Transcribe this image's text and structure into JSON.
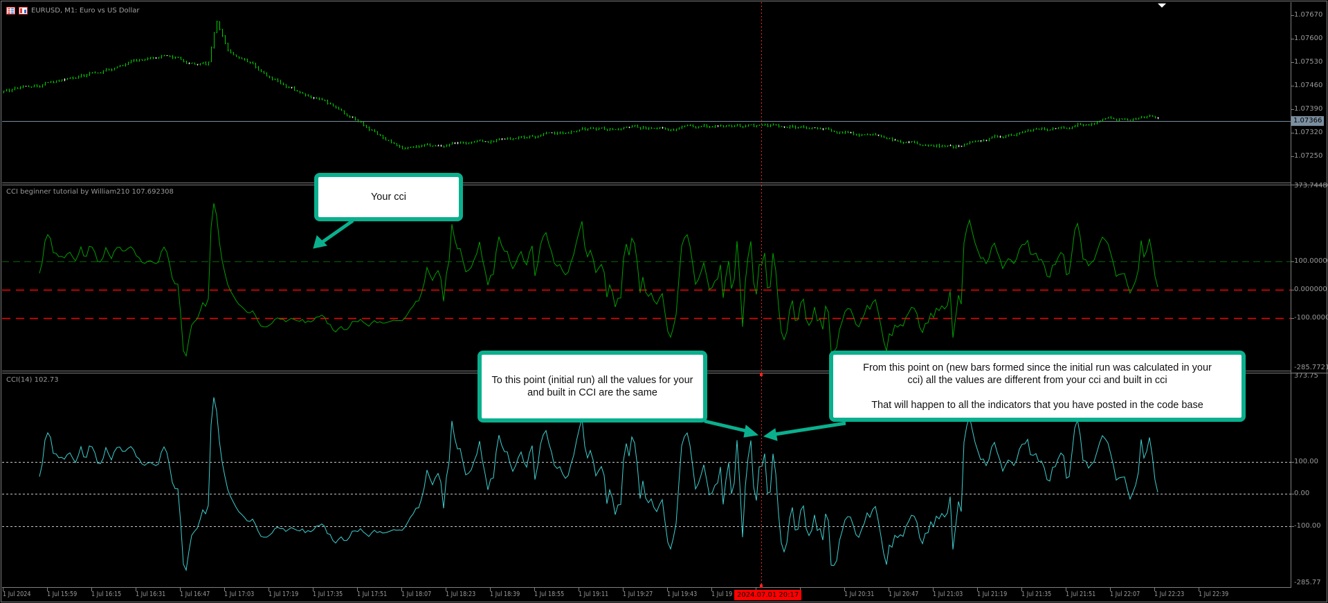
{
  "window": {
    "symbol_title": "EURUSD, M1:  Euro vs US Dollar",
    "icons": [
      "chart-list-icon",
      "template-icon"
    ]
  },
  "price_panel": {
    "axis_labels": [
      "1.07670",
      "1.07600",
      "1.07530",
      "1.07460",
      "1.07390",
      "1.07320",
      "1.07250"
    ],
    "current_price": "1.07366",
    "candle_color": "#00c800",
    "price_line_color": "#7b8fa0"
  },
  "custom_cci_panel": {
    "title": "CCI beginner tutorial by William210 107.692308",
    "axis_max": "373.744805",
    "axis_labels": [
      "100.000000",
      "0.000000",
      "-100.000000"
    ],
    "axis_min": "-285.772142",
    "line_color": "#00a000",
    "level_color": "#ff0000"
  },
  "builtin_cci_panel": {
    "title": "CCI(14) 102.73",
    "axis_max": "373.75",
    "axis_labels": [
      "100.00",
      "0.00",
      "-100.00"
    ],
    "axis_min": "-285.77",
    "line_color": "#3fd0d0"
  },
  "time_axis": {
    "labels": [
      "1 Jul 2024",
      "1 Jul 15:59",
      "1 Jul 16:15",
      "1 Jul 16:31",
      "1 Jul 16:47",
      "1 Jul 17:03",
      "1 Jul 17:19",
      "1 Jul 17:35",
      "1 Jul 17:51",
      "1 Jul 18:07",
      "1 Jul 18:23",
      "1 Jul 18:39",
      "1 Jul 18:55",
      "1 Jul 19:11",
      "1 Jul 19:27",
      "1 Jul 19:43",
      "1 Jul 19",
      "",
      "",
      "1 Jul 20:31",
      "1 Jul 20:47",
      "1 Jul 21:03",
      "1 Jul 21:19",
      "1 Jul 21:35",
      "1 Jul 21:51",
      "1 Jul 22:07",
      "1 Jul 22:23",
      "1 Jul 22:39"
    ],
    "cursor_time": "2024.07.01 20:17"
  },
  "annotations": {
    "accent_color": "#0ab08e",
    "your_cci": "Your cci",
    "initial_run": [
      "To this point (initial run) all the values for your",
      "and built in CCI are the same"
    ],
    "new_bars": [
      "From this point on (new bars formed since the initial run was calculated in your",
      "cci) all the values are different from your cci and built in cci",
      "",
      "That will happen to all the indicators that you have posted in the code base"
    ]
  }
}
